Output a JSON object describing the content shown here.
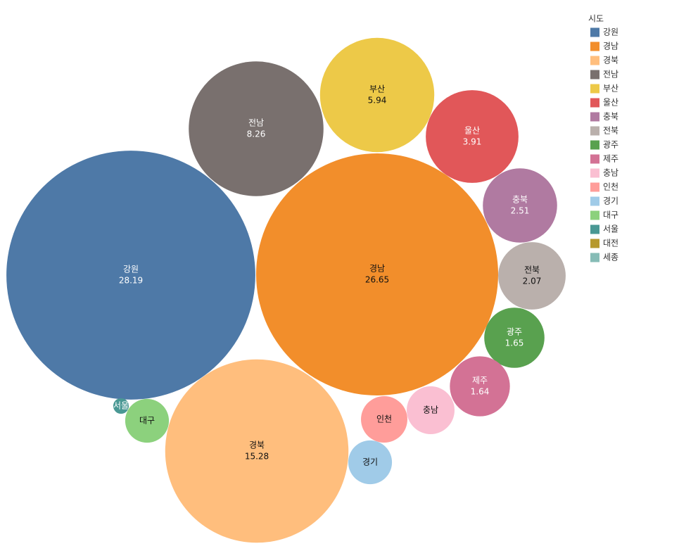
{
  "chart_data": {
    "type": "bubble",
    "legend_title": "시도",
    "categories": [
      "강원",
      "경남",
      "경북",
      "전남",
      "부산",
      "울산",
      "충북",
      "전북",
      "광주",
      "제주",
      "충남",
      "인천",
      "경기",
      "대구",
      "서울",
      "대전",
      "세종"
    ],
    "values": [
      28.19,
      26.65,
      15.28,
      8.26,
      5.94,
      3.91,
      2.51,
      2.07,
      1.65,
      1.64,
      1.04,
      0.98,
      0.87,
      0.87,
      0.11,
      null,
      null
    ],
    "colors": [
      "#4e79a7",
      "#f28e2b",
      "#ffbe7d",
      "#79706e",
      "#edc948",
      "#e15759",
      "#b07aa1",
      "#bab0ac",
      "#59a14f",
      "#d37295",
      "#fabfd2",
      "#ff9d9a",
      "#a0cbe8",
      "#8cd17d",
      "#499894",
      "#b6992d",
      "#86bcb6"
    ],
    "legend": "top-right"
  }
}
